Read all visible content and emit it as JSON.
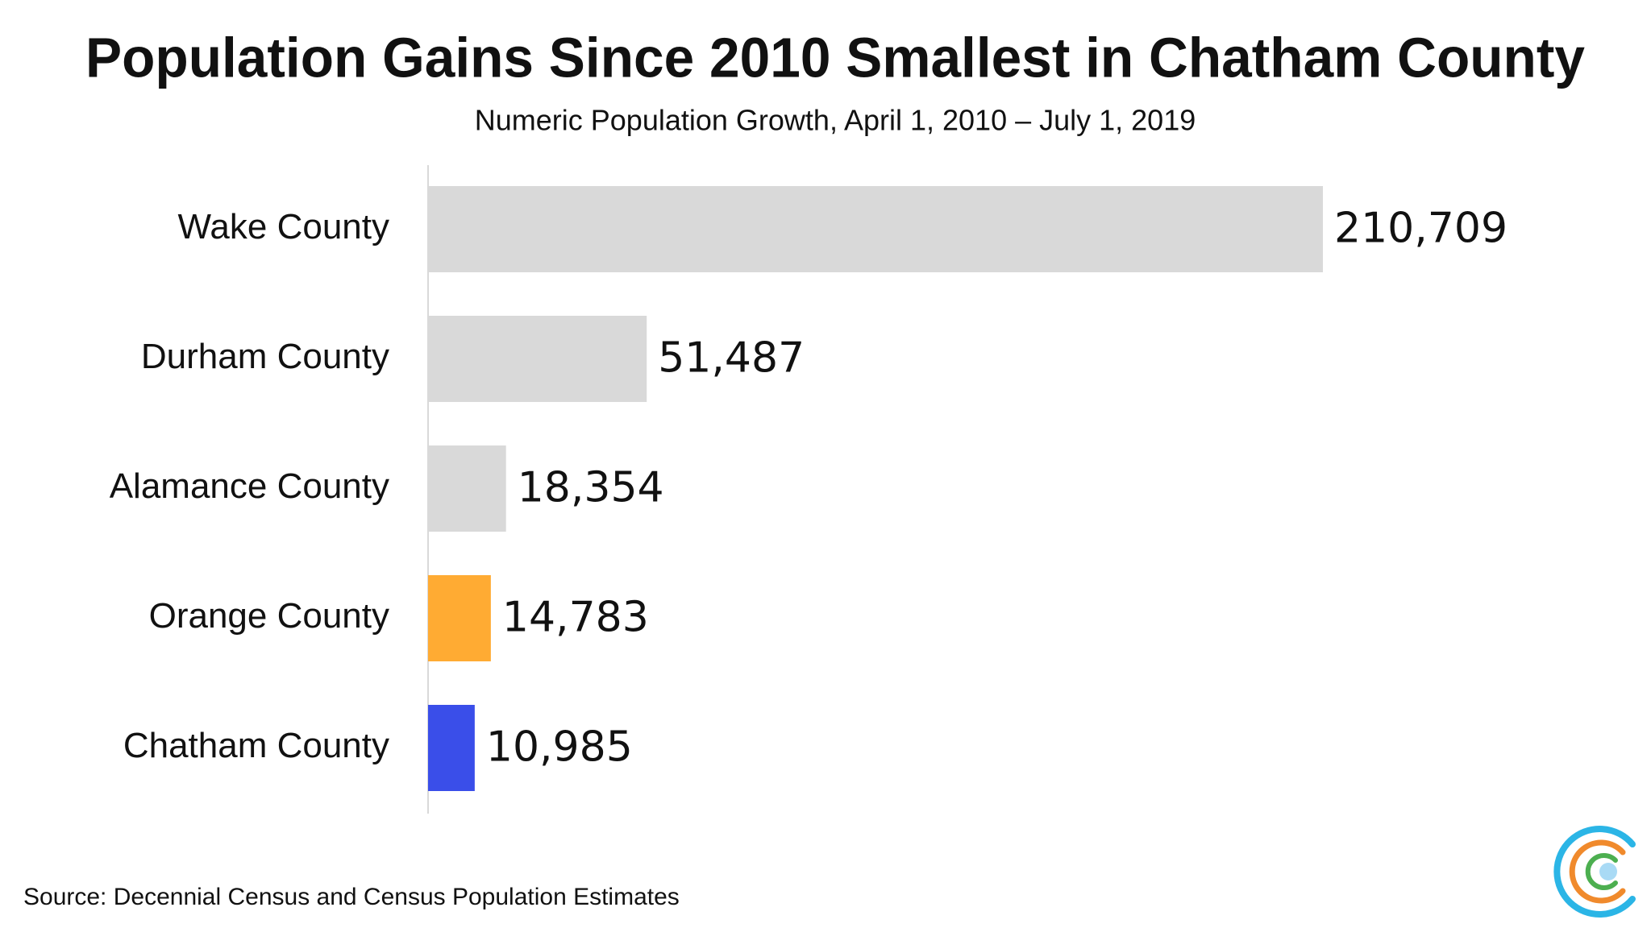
{
  "chart_data": {
    "type": "bar",
    "orientation": "horizontal",
    "title": "Population Gains Since 2010 Smallest in Chatham County",
    "subtitle": "Numeric Population Growth, April 1, 2010 – July 1, 2019",
    "categories": [
      "Wake County",
      "Durham County",
      "Alamance County",
      "Orange County",
      "Chatham County"
    ],
    "values": [
      210709,
      51487,
      18354,
      14783,
      10985
    ],
    "value_labels": [
      "210,709",
      "51,487",
      "18,354",
      "14,783",
      "10,985"
    ],
    "colors": [
      "#d9d9d9",
      "#d9d9d9",
      "#d9d9d9",
      "#ffab33",
      "#3a4ee9"
    ],
    "source": "Source: Decennial Census and Census Population Estimates"
  }
}
